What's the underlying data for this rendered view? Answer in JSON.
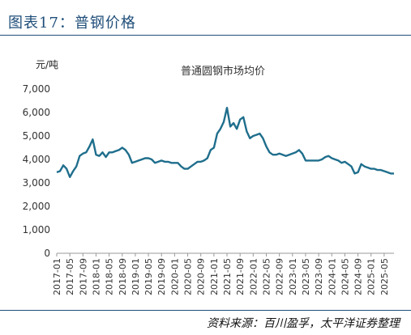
{
  "header": {
    "figure_title": "图表17：普钢价格"
  },
  "footer": {
    "source": "资料来源：百川盈孚，太平洋证券整理"
  },
  "chart_data": {
    "type": "line",
    "title": "普通圆钢市场均价",
    "ylabel": "元/吨",
    "xlabel": "",
    "ylim": [
      0,
      7000
    ],
    "yticks": [
      "0",
      "1,000",
      "2,000",
      "3,000",
      "4,000",
      "5,000",
      "6,000",
      "7,000"
    ],
    "ytick_values": [
      0,
      1000,
      2000,
      3000,
      4000,
      5000,
      6000,
      7000
    ],
    "xlim": [
      "2017-01",
      "2025-08"
    ],
    "xticks": [
      "2017-01",
      "2017-05",
      "2017-09",
      "2018-01",
      "2018-05",
      "2018-09",
      "2019-01",
      "2019-05",
      "2019-09",
      "2020-01",
      "2020-05",
      "2020-09",
      "2021-01",
      "2021-05",
      "2021-09",
      "2022-01",
      "2022-05",
      "2022-09",
      "2023-01",
      "2023-05",
      "2023-09",
      "2024-01",
      "2024-05",
      "2024-09",
      "2025-01",
      "2025-05"
    ],
    "grid": false,
    "line_color": "#1f6e8c",
    "series": [
      {
        "x": [
          "2017-01",
          "2017-02",
          "2017-03",
          "2017-04",
          "2017-05",
          "2017-06",
          "2017-07",
          "2017-08",
          "2017-09",
          "2017-10",
          "2017-11",
          "2017-12",
          "2018-01",
          "2018-02",
          "2018-03",
          "2018-04",
          "2018-05",
          "2018-06",
          "2018-07",
          "2018-08",
          "2018-09",
          "2018-10",
          "2018-11",
          "2018-12",
          "2019-01",
          "2019-02",
          "2019-03",
          "2019-04",
          "2019-05",
          "2019-06",
          "2019-07",
          "2019-08",
          "2019-09",
          "2019-10",
          "2019-11",
          "2019-12",
          "2020-01",
          "2020-02",
          "2020-03",
          "2020-04",
          "2020-05",
          "2020-06",
          "2020-07",
          "2020-08",
          "2020-09",
          "2020-10",
          "2020-11",
          "2020-12",
          "2021-01",
          "2021-02",
          "2021-03",
          "2021-04",
          "2021-05",
          "2021-06",
          "2021-07",
          "2021-08",
          "2021-09",
          "2021-10",
          "2021-11",
          "2021-12",
          "2022-01",
          "2022-02",
          "2022-03",
          "2022-04",
          "2022-05",
          "2022-06",
          "2022-07",
          "2022-08",
          "2022-09",
          "2022-10",
          "2022-11",
          "2022-12",
          "2023-01",
          "2023-02",
          "2023-03",
          "2023-04",
          "2023-05",
          "2023-06",
          "2023-07",
          "2023-08",
          "2023-09",
          "2023-10",
          "2023-11",
          "2023-12",
          "2024-01",
          "2024-02",
          "2024-03",
          "2024-04",
          "2024-05",
          "2024-06",
          "2024-07",
          "2024-08",
          "2024-09",
          "2024-10",
          "2024-11",
          "2024-12",
          "2025-01",
          "2025-02",
          "2025-03",
          "2025-04",
          "2025-05",
          "2025-06",
          "2025-07",
          "2025-08"
        ],
        "y": [
          3450,
          3500,
          3750,
          3600,
          3250,
          3500,
          3700,
          4150,
          4250,
          4300,
          4550,
          4850,
          4200,
          4150,
          4300,
          4100,
          4300,
          4300,
          4350,
          4400,
          4500,
          4400,
          4200,
          3850,
          3900,
          3950,
          4000,
          4050,
          4050,
          4000,
          3850,
          3900,
          3950,
          3900,
          3900,
          3850,
          3850,
          3850,
          3700,
          3600,
          3600,
          3700,
          3800,
          3900,
          3900,
          3950,
          4050,
          4400,
          4500,
          5100,
          5300,
          5600,
          6200,
          5400,
          5550,
          5300,
          5700,
          5800,
          5200,
          4900,
          5000,
          5050,
          5100,
          4900,
          4550,
          4300,
          4200,
          4200,
          4250,
          4200,
          4150,
          4200,
          4250,
          4300,
          4400,
          4250,
          3950,
          3950,
          3950,
          3950,
          3950,
          4000,
          4100,
          4150,
          4050,
          4000,
          3950,
          3850,
          3900,
          3800,
          3700,
          3400,
          3450,
          3800,
          3700,
          3650,
          3600,
          3600,
          3550,
          3550,
          3500,
          3450,
          3400,
          3400
        ]
      }
    ]
  }
}
